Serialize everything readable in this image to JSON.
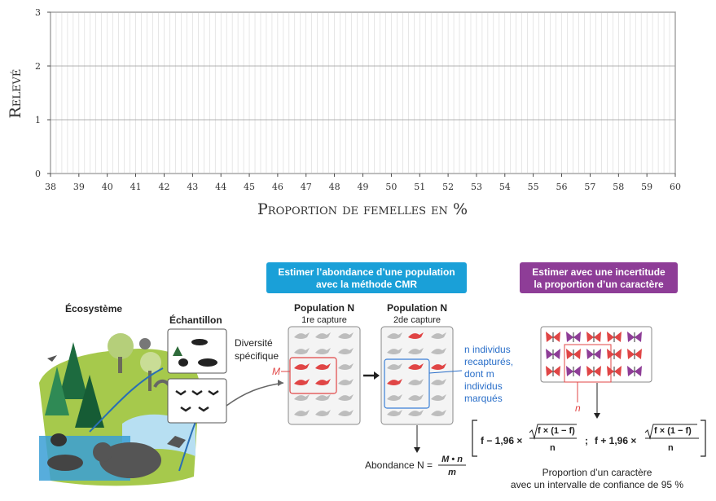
{
  "chart_data": {
    "type": "bar",
    "title": "",
    "xlabel": "Proportion de femelles en %",
    "ylabel": "Relevé",
    "xlim": [
      38,
      60
    ],
    "ylim": [
      0,
      3
    ],
    "x_ticks": [
      "38",
      "39",
      "40",
      "41",
      "42",
      "43",
      "44",
      "45",
      "46",
      "47",
      "48",
      "49",
      "50",
      "51",
      "52",
      "53",
      "54",
      "55",
      "56",
      "57",
      "58",
      "59",
      "60"
    ],
    "y_ticks": [
      "0",
      "1",
      "2",
      "3"
    ],
    "grid": true,
    "values": []
  },
  "infographic": {
    "ecosystem_label": "Écosystème",
    "sample_label": "Échantillon",
    "diversity_label": [
      "Diversité",
      "spécifique"
    ],
    "cmr_banner": [
      "Estimer l’abondance d’une population",
      "avec la méthode CMR"
    ],
    "uncertainty_banner": [
      "Estimer avec une incertitude",
      "la proportion d’un caractère"
    ],
    "pop1_title": "Population N",
    "pop1_sub": "1re capture",
    "pop2_title": "Population N",
    "pop2_sub": "2de capture",
    "marker_M": "M",
    "marker_n": "n",
    "recapture_note": [
      "n individus",
      "recapturés,",
      "dont m",
      "individus",
      "marqués"
    ],
    "abundance_label": "Abondance N =",
    "abundance_num": "M • n",
    "abundance_den": "m",
    "formula_left": "f − 1,96 ×",
    "formula_right": "f + 1,96 ×",
    "formula_sqrt": "f × (1 − f)",
    "formula_den": "n",
    "formula_sep": ";",
    "caption": [
      "Proportion d’un caractère",
      "avec un intervalle de confiance de 95 %"
    ],
    "colors": {
      "cyan": "#1aa0d8",
      "purple": "#8e3d97",
      "green": "#8dbf3f",
      "red": "#e04545",
      "water": "#3a9fd6"
    }
  }
}
